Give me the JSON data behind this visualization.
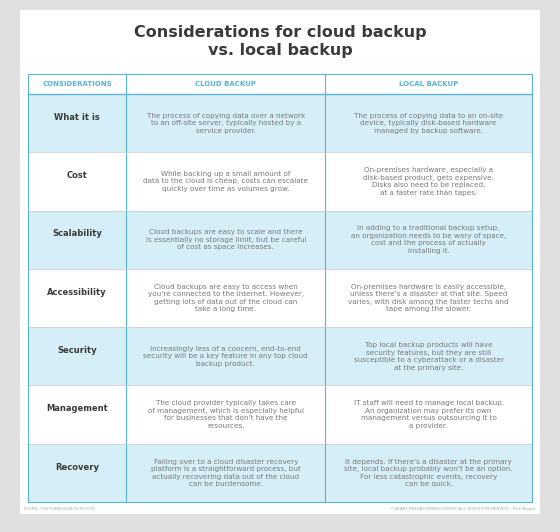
{
  "title_line1": "Considerations for cloud backup",
  "title_line2": "vs. local backup",
  "title_color": "#3a3a3a",
  "bg_color": "#e0e0e0",
  "table_bg": "#ffffff",
  "header_text_color": "#5ab4d6",
  "shaded_row_color": "#d6eef7",
  "unshaded_row_color": "#ffffff",
  "col_headers": [
    "CONSIDERATIONS",
    "CLOUD BACKUP",
    "LOCAL BACKUP"
  ],
  "rows": [
    {
      "label": "What it is",
      "cloud": "The process of copying data over a network\nto an off-site server, typically hosted by a\nservice provider.",
      "local": "The process of copying data to an on-site\ndevice, typically disk-based hardware\nmanaged by backup software.",
      "shaded": true
    },
    {
      "label": "Cost",
      "cloud": "While backing up a small amount of\ndata to the cloud is cheap, costs can escalate\nquickly over time as volumes grow.",
      "local": "On-premises hardware, especially a\ndisk-based product, gets expensive.\nDisks also need to be replaced,\nat a faster rate than tapes.",
      "shaded": false
    },
    {
      "label": "Scalability",
      "cloud": "Cloud backups are easy to scale and there\nis essentially no storage limit, but be careful\nof cost as space increases.",
      "local": "In adding to a traditional backup setup,\nan organization needs to be wary of space,\ncost and the process of actually\ninstalling it.",
      "shaded": true
    },
    {
      "label": "Accessibility",
      "cloud": "Cloud backups are easy to access when\nyou're connected to the internet. However,\ngetting lots of data out of the cloud can\ntake a long time.",
      "local": "On-premises hardware is easily accessible,\nunless there's a disaster at that site. Speed\nvaries, with disk among the faster techs and\ntape among the slower.",
      "shaded": false
    },
    {
      "label": "Security",
      "cloud": "Increasingly less of a concern, end-to-end\nsecurity will be a key feature in any top cloud\nbackup product.",
      "local": "Top local backup products will have\nsecurity features, but they are still\nsusceptible to a cyberattack or a disaster\nat the primary site.",
      "shaded": true
    },
    {
      "label": "Management",
      "cloud": "The cloud provider typically takes care\nof management, which is especially helpful\nfor businesses that don't have the\nresources.",
      "local": "IT staff will need to manage local backup.\nAn organization may prefer its own\nmanagement versus outsourcing it to\na provider.",
      "shaded": false
    },
    {
      "label": "Recovery",
      "cloud": "Failing over to a cloud disaster recovery\nplatform is a straightforward process, but\nactually recovering data out of the cloud\ncan be burdensome.",
      "local": "It depends. If there's a disaster at the primary\nsite, local backup probably won't be an option.\nFor less catastrophic events, recovery\ncan be quick.",
      "shaded": true
    }
  ],
  "footer_left": "ICONS: THETURBULENCE/STOCK",
  "footer_right": "©SEARCHDISASTERRECOVERY. ALL RIGHTS RESERVED.  TechTarget",
  "label_color": "#3a3a3a",
  "body_text_color": "#7a7a7a",
  "divider_color": "#5ab4d6",
  "title_fontsize": 11.5,
  "header_fontsize": 5.0,
  "label_fontsize": 6.0,
  "body_fontsize": 5.2,
  "footer_fontsize": 3.2
}
